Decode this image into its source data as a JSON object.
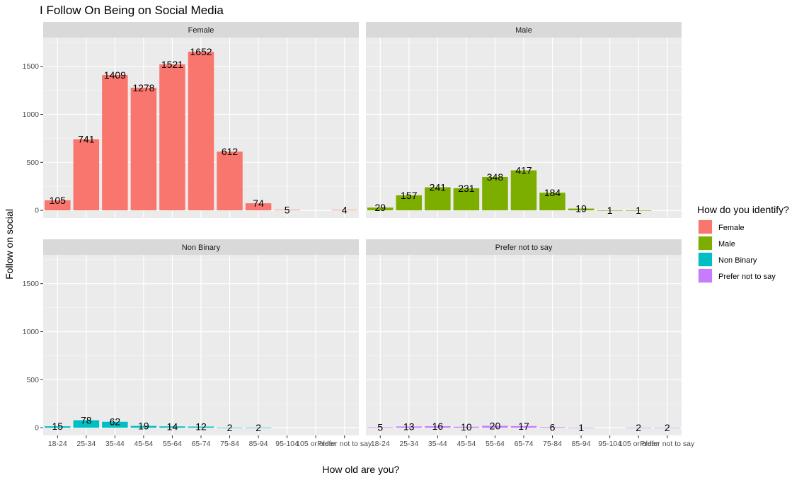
{
  "chart_data": {
    "type": "bar",
    "title": "I Follow On Being on Social Media",
    "xlabel": "How old are you?",
    "ylabel": "Follow on social",
    "categories": [
      "18-24",
      "25-34",
      "35-44",
      "45-54",
      "55-64",
      "65-74",
      "75-84",
      "85-94",
      "95-104",
      "105 or older",
      "Prefer not to say"
    ],
    "y_ticks": [
      0,
      500,
      1000,
      1500
    ],
    "ylim": [
      -80,
      1800
    ],
    "grid": true,
    "legend": {
      "title": "How do you identify?",
      "position": "right"
    },
    "panels": [
      {
        "name": "Female",
        "color": "#F8766D",
        "values": [
          105,
          741,
          1409,
          1278,
          1521,
          1652,
          612,
          74,
          5,
          null,
          4
        ]
      },
      {
        "name": "Male",
        "color": "#7CAE00",
        "values": [
          29,
          157,
          241,
          231,
          348,
          417,
          184,
          19,
          1,
          1,
          null
        ]
      },
      {
        "name": "Non Binary",
        "color": "#00BFC4",
        "values": [
          15,
          78,
          62,
          19,
          14,
          12,
          2,
          2,
          null,
          null,
          null
        ]
      },
      {
        "name": "Prefer not to say",
        "color": "#C77CFF",
        "values": [
          5,
          13,
          16,
          10,
          20,
          17,
          6,
          1,
          null,
          2,
          2
        ]
      }
    ]
  }
}
